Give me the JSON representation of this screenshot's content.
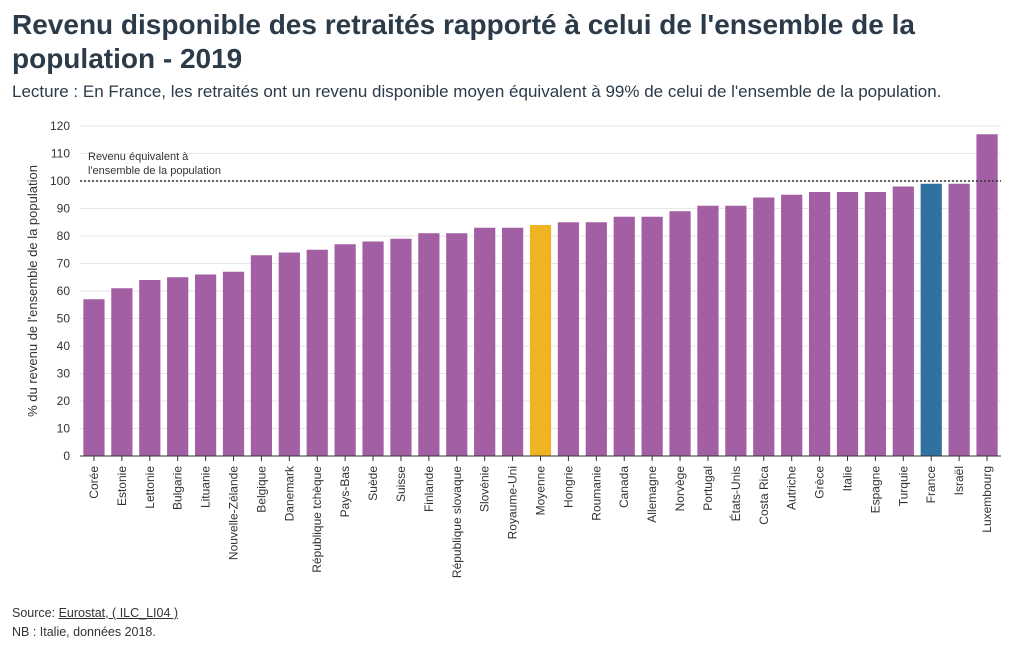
{
  "title": "Revenu disponible des retraités rapporté à celui de l'ensemble de la population - 2019",
  "subtitle": "Lecture : En France, les retraités ont un revenu disponible moyen équivalent à 99% de celui de l'ensemble de la population.",
  "footer": {
    "source_prefix": "Source: ",
    "source_link": "Eurostat, ( ILC_LI04 )",
    "note": "NB : Italie, données 2018."
  },
  "chart_data": {
    "type": "bar",
    "title": "Revenu disponible des retraités rapporté à celui de l'ensemble de la population - 2019",
    "xlabel": "",
    "ylabel": "% du revenu de l'ensemble de la population",
    "ylim": [
      0,
      120
    ],
    "yticks": [
      0,
      10,
      20,
      30,
      40,
      50,
      60,
      70,
      80,
      90,
      100,
      110,
      120
    ],
    "grid": true,
    "categories": [
      "Corée",
      "Estonie",
      "Lettonie",
      "Bulgarie",
      "Lituanie",
      "Nouvelle-Zélande",
      "Belgique",
      "Danemark",
      "République tchèque",
      "Pays-Bas",
      "Suède",
      "Suisse",
      "Finlande",
      "République slovaque",
      "Slovénie",
      "Royaume-Uni",
      "Moyenne",
      "Hongrie",
      "Roumanie",
      "Canada",
      "Allemagne",
      "Norvège",
      "Portugal",
      "États-Unis",
      "Costa Rica",
      "Autriche",
      "Grèce",
      "Italie",
      "Espagne",
      "Turquie",
      "France",
      "Israël",
      "Luxembourg"
    ],
    "values": [
      57,
      61,
      64,
      65,
      66,
      67,
      73,
      74,
      75,
      77,
      78,
      79,
      81,
      81,
      83,
      83,
      84,
      85,
      85,
      87,
      87,
      89,
      91,
      91,
      94,
      95,
      96,
      96,
      96,
      98,
      99,
      99,
      117
    ],
    "colors": {
      "default": "#a25fa3",
      "highlight_average": "#f0b323",
      "highlight_france": "#31719f",
      "reference_line": "#333333"
    },
    "highlights": {
      "Moyenne": "highlight_average",
      "France": "highlight_france"
    },
    "reference_line": {
      "value": 100,
      "style": "dotted",
      "label": "Revenu équivalent à l'ensemble de la population"
    }
  }
}
